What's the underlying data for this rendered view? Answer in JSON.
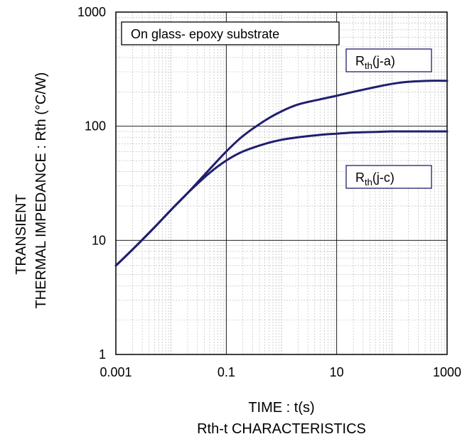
{
  "chart_data": {
    "type": "line",
    "x_scale": "log",
    "y_scale": "log",
    "xlim": [
      0.001,
      1000
    ],
    "ylim": [
      1,
      1000
    ],
    "x_ticks": [
      "0.001",
      "0.1",
      "10",
      "1000"
    ],
    "x_tick_values": [
      0.001,
      0.1,
      10,
      1000
    ],
    "y_ticks": [
      "1",
      "10",
      "100",
      "1000"
    ],
    "y_tick_values": [
      1,
      10,
      100,
      1000
    ],
    "xlabel": "TIME : t(s)",
    "ylabel_line1": "TRANSIENT",
    "ylabel_line2": "THERMAL IMPEDANCE : Rth (°C/W)",
    "caption": "Rth-t CHARACTERISTICS",
    "annotation": "On glass- epoxy substrate",
    "grid": true,
    "line_color": "#1f1f6e",
    "series": [
      {
        "label_main": "R",
        "label_sub": "th",
        "label_suffix": "(j-a)",
        "x": [
          0.001,
          0.002,
          0.005,
          0.01,
          0.02,
          0.05,
          0.1,
          0.2,
          0.5,
          1,
          2,
          5,
          10,
          20,
          50,
          100,
          200,
          500,
          1000
        ],
        "y": [
          6,
          8.3,
          13,
          18.5,
          26,
          42,
          60,
          82,
          112,
          135,
          155,
          172,
          185,
          200,
          220,
          235,
          245,
          250,
          250
        ]
      },
      {
        "label_main": "R",
        "label_sub": "th",
        "label_suffix": "(j-c)",
        "x": [
          0.001,
          0.002,
          0.005,
          0.01,
          0.02,
          0.05,
          0.1,
          0.2,
          0.5,
          1,
          2,
          5,
          10,
          20,
          50,
          100,
          200,
          500,
          1000
        ],
        "y": [
          6,
          8.3,
          13,
          18.5,
          26,
          39,
          50,
          60,
          70,
          76,
          80,
          84,
          86,
          88,
          89,
          90,
          90,
          90,
          90
        ]
      }
    ]
  }
}
